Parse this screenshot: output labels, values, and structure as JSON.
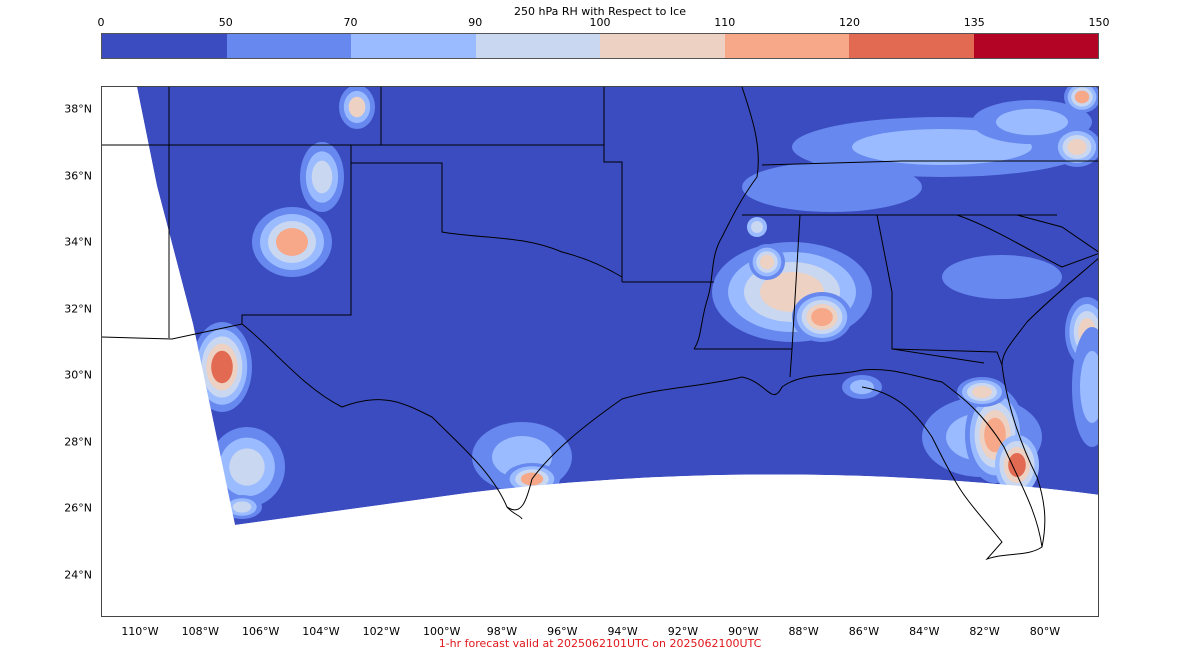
{
  "colorbar": {
    "title": "250 hPa RH with Respect to Ice",
    "ticks": [
      "0",
      "50",
      "70",
      "90",
      "100",
      "110",
      "120",
      "135",
      "150"
    ],
    "colors": [
      "#3b4cc0",
      "#6788ee",
      "#9abbff",
      "#c9d7f0",
      "#edd1c2",
      "#f7a889",
      "#e26952",
      "#b40426"
    ]
  },
  "map": {
    "ocean_nodata_color": "#ffffff",
    "border_color": "#000000",
    "lat_labels": [
      "38°N",
      "36°N",
      "34°N",
      "32°N",
      "30°N",
      "28°N",
      "26°N",
      "24°N"
    ],
    "lon_labels": [
      "110°W",
      "108°W",
      "106°W",
      "104°W",
      "102°W",
      "100°W",
      "98°W",
      "96°W",
      "94°W",
      "92°W",
      "90°W",
      "88°W",
      "86°W",
      "84°W",
      "82°W",
      "80°W"
    ]
  },
  "caption": {
    "text": "1-hr forecast valid at 2025062101UTC on 2025062100UTC",
    "color": "#e0161b"
  }
}
